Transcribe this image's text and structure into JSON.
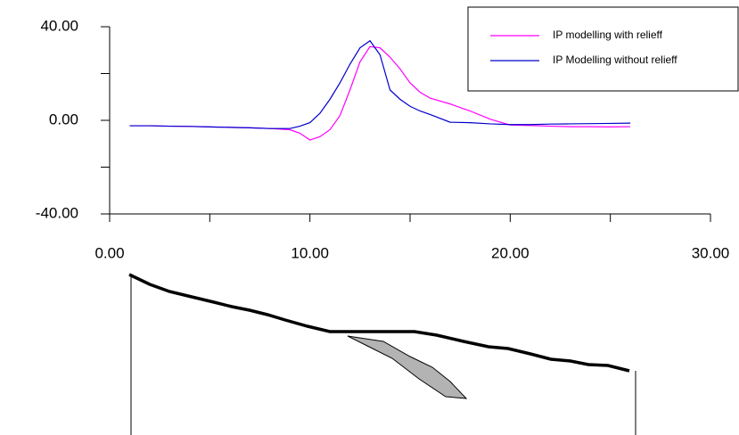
{
  "chart_data": {
    "type": "line",
    "x": [
      1,
      2,
      3,
      4,
      5,
      6,
      7,
      8,
      9,
      9.5,
      10,
      10.5,
      11,
      11.5,
      12,
      12.5,
      13,
      13.5,
      14,
      14.5,
      15,
      15.5,
      16,
      17,
      18,
      19,
      20,
      21,
      22,
      23,
      24,
      25,
      26
    ],
    "series": [
      {
        "name": "IP modelling with relieff",
        "color": "#ff00ff",
        "values": [
          -2.3,
          -2.3,
          -2.5,
          -2.6,
          -2.8,
          -3,
          -3.2,
          -3.5,
          -4,
          -5.5,
          -8.4,
          -7,
          -4,
          2,
          13,
          25,
          31.5,
          31,
          27,
          22,
          16,
          12,
          9.5,
          7,
          4,
          0.5,
          -2,
          -2.2,
          -2.5,
          -2.7,
          -2.7,
          -2.8,
          -2.7
        ]
      },
      {
        "name": "IP Modelling without relieff",
        "color": "#0000cc",
        "values": [
          -2.3,
          -2.3,
          -2.5,
          -2.6,
          -2.8,
          -3,
          -3.2,
          -3.5,
          -3.5,
          -2.5,
          -1,
          3,
          9,
          16,
          24,
          31,
          34,
          28,
          13,
          9,
          6,
          4,
          2.5,
          -0.8,
          -1,
          -1.5,
          -1.8,
          -1.8,
          -1.6,
          -1.5,
          -1.4,
          -1.3,
          -1.2
        ]
      }
    ],
    "xlim": [
      0,
      30
    ],
    "xticks": [
      {
        "value": 0,
        "label": "0.00"
      },
      {
        "value": 10,
        "label": "10.00"
      },
      {
        "value": 20,
        "label": "20.00"
      },
      {
        "value": 30,
        "label": "30.00"
      }
    ],
    "x_minor_ticks": [
      5,
      15,
      25
    ],
    "ylim": [
      -40,
      40
    ],
    "yticks": [
      {
        "value": -40,
        "label": "-40.00"
      },
      {
        "value": 0,
        "label": "0.00"
      },
      {
        "value": 40,
        "label": "40.00"
      }
    ],
    "y_minor_ticks": [
      -20,
      20
    ],
    "legend": "upper right"
  }
}
